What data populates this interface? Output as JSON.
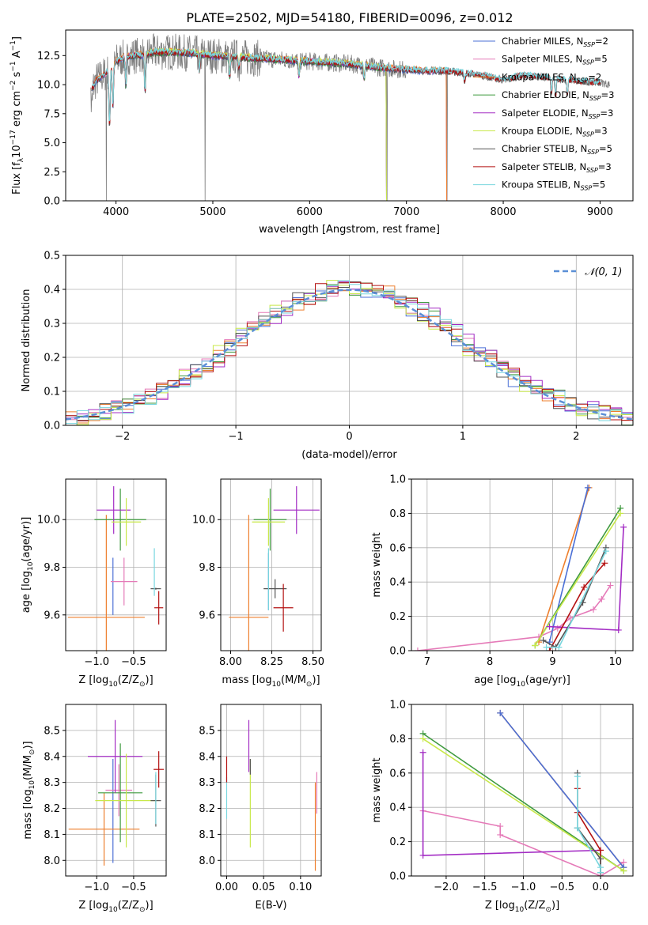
{
  "figure_title": "PLATE=2502, MJD=54180, FIBERID=0096, z=0.012",
  "colors": {
    "Chabrier MILES": "#4a6fd6",
    "Salpeter MILES": "#e57ab8",
    "Kroupa MILES": "#ee7f2d",
    "Chabrier ELODIE": "#3f9a3f",
    "Salpeter ELODIE": "#a32cc4",
    "Kroupa ELODIE": "#c8e84a",
    "Chabrier STELIB": "#555555",
    "Salpeter STELIB": "#b31010",
    "Kroupa STELIB": "#78d6de",
    "gauss": "#5b8fd6"
  },
  "chart_data": [
    {
      "id": "spectrum",
      "type": "line",
      "title": "PLATE=2502, MJD=54180, FIBERID=0096, z=0.012",
      "xlabel": "wavelength [Angstrom, rest frame]",
      "ylabel": "Flux [f",
      "ylabel_parts": [
        "Flux [f",
        "λ",
        "10",
        "−17",
        " erg cm",
        "−2",
        " s",
        "−1",
        " A",
        "−1",
        "]"
      ],
      "xlim": [
        3480,
        9340
      ],
      "ylim": [
        0,
        14.7
      ],
      "xticks": [
        "4000",
        "5000",
        "6000",
        "7000",
        "8000",
        "9000"
      ],
      "xtick_values": [
        4000,
        5000,
        6000,
        7000,
        8000,
        9000
      ],
      "yticks": [
        "0.0",
        "2.5",
        "5.0",
        "7.5",
        "10.0",
        "12.5"
      ],
      "ytick_values": [
        0,
        2.5,
        5.0,
        7.5,
        10.0,
        12.5
      ],
      "grid": false,
      "legend_position": "top-right",
      "series": [
        {
          "name": "Chabrier MILES",
          "name_base": "Chabrier MILES, N",
          "name_sub": "SSP",
          "name_tail": "=2"
        },
        {
          "name": "Salpeter MILES",
          "name_base": "Salpeter MILES, N",
          "name_sub": "SSP",
          "name_tail": "=5"
        },
        {
          "name": "Kroupa MILES",
          "name_base": "Kroupa MILES, N",
          "name_sub": "SSP",
          "name_tail": "=2"
        },
        {
          "name": "Chabrier ELODIE",
          "name_base": "Chabrier ELODIE, N",
          "name_sub": "SSP",
          "name_tail": "=3"
        },
        {
          "name": "Salpeter ELODIE",
          "name_base": "Salpeter ELODIE, N",
          "name_sub": "SSP",
          "name_tail": "=3"
        },
        {
          "name": "Kroupa ELODIE",
          "name_base": "Kroupa ELODIE, N",
          "name_sub": "SSP",
          "name_tail": "=3"
        },
        {
          "name": "Chabrier STELIB",
          "name_base": "Chabrier STELIB, N",
          "name_sub": "SSP",
          "name_tail": "=5"
        },
        {
          "name": "Salpeter STELIB",
          "name_base": "Salpeter STELIB, N",
          "name_sub": "SSP",
          "name_tail": "=3"
        },
        {
          "name": "Kroupa STELIB",
          "name_base": "Kroupa STELIB, N",
          "name_sub": "SSP",
          "name_tail": "=5"
        }
      ],
      "continuum": {
        "x": [
          3750,
          3800,
          3900,
          4000,
          4100,
          4200,
          4300,
          4400,
          4600,
          4800,
          5000,
          5200,
          5400,
          5600,
          5800,
          6000,
          6200,
          6400,
          6600,
          6800,
          7000,
          7200,
          7400,
          7600,
          7800,
          8000,
          8200,
          8400,
          8600,
          8800,
          9000,
          9100
        ],
        "y": [
          9.6,
          10.4,
          11.0,
          12.0,
          12.4,
          12.5,
          12.6,
          12.8,
          12.8,
          12.7,
          12.5,
          12.4,
          12.3,
          12.2,
          12.1,
          12.0,
          11.9,
          11.8,
          11.6,
          11.4,
          11.3,
          11.2,
          11.2,
          11.0,
          10.8,
          10.4,
          10.8,
          10.7,
          10.5,
          10.3,
          10.2,
          10.0
        ]
      },
      "features": [
        {
          "x": 3933,
          "depth": 0.45
        },
        {
          "x": 3968,
          "depth": 0.3
        },
        {
          "x": 4102,
          "depth": 0.2
        },
        {
          "x": 4300,
          "depth": 0.25
        },
        {
          "x": 4861,
          "depth": 0.12
        },
        {
          "x": 5175,
          "depth": 0.15
        },
        {
          "x": 5270,
          "depth": 0.08
        },
        {
          "x": 5890,
          "depth": 0.12
        },
        {
          "x": 6563,
          "depth": 0.1
        },
        {
          "x": 7600,
          "depth": 0.06
        },
        {
          "x": 8498,
          "depth": 0.12
        },
        {
          "x": 8542,
          "depth": 0.15
        },
        {
          "x": 8662,
          "depth": 0.13
        }
      ],
      "drops": [
        {
          "x": 3900,
          "y": 0.0
        },
        {
          "x": 4920,
          "y": 0.0
        },
        {
          "x": 6800,
          "y": 0.0
        },
        {
          "x": 7420,
          "y": 0.0
        }
      ]
    },
    {
      "id": "residuals",
      "type": "histogram",
      "xlabel": "(data-model)/error",
      "ylabel": "Normed distribution",
      "xlim": [
        -2.5,
        2.5
      ],
      "ylim": [
        0,
        0.5
      ],
      "xticks": [
        "−2",
        "−1",
        "0",
        "1",
        "2"
      ],
      "xtick_values": [
        -2,
        -1,
        0,
        1,
        2
      ],
      "yticks": [
        "0.0",
        "0.1",
        "0.2",
        "0.3",
        "0.4",
        "0.5"
      ],
      "ytick_values": [
        0,
        0.1,
        0.2,
        0.3,
        0.4,
        0.5
      ],
      "grid": true,
      "bin_width": 0.1,
      "legend_position": "top-right",
      "legend": [
        "𝒩(0, 1)"
      ],
      "gaussian": {
        "mean": 0,
        "sigma": 1
      }
    },
    {
      "id": "age-vs-Z",
      "type": "scatter",
      "xlabel": "Z [log",
      "xlabel_parts": [
        "Z [log",
        "10",
        "(Z/Z",
        "⊙",
        ")]"
      ],
      "ylabel_parts": [
        "age  [log",
        "10",
        "(age/yr)]"
      ],
      "xlim": [
        -1.42,
        -0.06
      ],
      "ylim": [
        9.45,
        10.17
      ],
      "xticks": [
        "−1.0",
        "−0.5"
      ],
      "xtick_values": [
        -1.0,
        -0.5
      ],
      "yticks": [
        "9.6",
        "9.8",
        "10.0"
      ],
      "ytick_values": [
        9.6,
        9.8,
        10.0
      ],
      "grid": true,
      "points": [
        {
          "model": "Chabrier MILES",
          "x": -0.78,
          "y": 9.72,
          "xerr": 0.0,
          "yerr": 0.12
        },
        {
          "model": "Salpeter MILES",
          "x": -0.63,
          "y": 9.74,
          "xerr": 0.18,
          "yerr": 0.1
        },
        {
          "model": "Kroupa MILES",
          "x": -0.87,
          "y": 9.59,
          "xerr": 0.52,
          "yerr": 0.43
        },
        {
          "model": "Chabrier ELODIE",
          "x": -0.68,
          "y": 10.0,
          "xerr": 0.35,
          "yerr": 0.13
        },
        {
          "model": "Salpeter ELODIE",
          "x": -0.77,
          "y": 10.04,
          "xerr": 0.23,
          "yerr": 0.1
        },
        {
          "model": "Kroupa ELODIE",
          "x": -0.6,
          "y": 9.99,
          "xerr": 0.2,
          "yerr": 0.1
        },
        {
          "model": "Chabrier STELIB",
          "x": -0.2,
          "y": 9.71,
          "xerr": 0.07,
          "yerr": 0.0
        },
        {
          "model": "Salpeter STELIB",
          "x": -0.16,
          "y": 9.63,
          "xerr": 0.06,
          "yerr": 0.07
        },
        {
          "model": "Kroupa STELIB",
          "x": -0.22,
          "y": 9.78,
          "xerr": 0.0,
          "yerr": 0.1
        }
      ]
    },
    {
      "id": "age-vs-mass",
      "type": "scatter",
      "xlabel_parts": [
        "mass [log",
        "10",
        "(M/M",
        "⊙",
        ")]"
      ],
      "ylabel_parts": [],
      "xlim": [
        7.94,
        8.55
      ],
      "ylim": [
        9.45,
        10.17
      ],
      "xticks": [
        "8.00",
        "8.25",
        "8.50"
      ],
      "xtick_values": [
        8.0,
        8.25,
        8.5
      ],
      "yticks": [
        "9.6",
        "9.8",
        "10.0"
      ],
      "ytick_values": [
        9.6,
        9.8,
        10.0
      ],
      "grid": true,
      "points": [
        {
          "model": "Chabrier MILES",
          "x": 8.23,
          "y": 9.74,
          "xerr": 0.0,
          "yerr": 0.12
        },
        {
          "model": "Kroupa MILES",
          "x": 8.11,
          "y": 9.59,
          "xerr": 0.12,
          "yerr": 0.43
        },
        {
          "model": "Chabrier ELODIE",
          "x": 8.24,
          "y": 10.0,
          "xerr": 0.1,
          "yerr": 0.13
        },
        {
          "model": "Salpeter ELODIE",
          "x": 8.4,
          "y": 10.04,
          "xerr": 0.14,
          "yerr": 0.1
        },
        {
          "model": "Kroupa ELODIE",
          "x": 8.23,
          "y": 9.99,
          "xerr": 0.1,
          "yerr": 0.1
        },
        {
          "model": "Chabrier STELIB",
          "x": 8.27,
          "y": 9.71,
          "xerr": 0.07,
          "yerr": 0.04
        },
        {
          "model": "Salpeter STELIB",
          "x": 8.32,
          "y": 9.63,
          "xerr": 0.06,
          "yerr": 0.1
        },
        {
          "model": "Kroupa STELIB",
          "x": 8.23,
          "y": 9.75,
          "xerr": 0.0,
          "yerr": 0.13
        }
      ]
    },
    {
      "id": "massweight-vs-age",
      "type": "line",
      "xlabel_parts": [
        "age  [log",
        "10",
        "(age/yr)]"
      ],
      "ylabel": "mass weight",
      "xlim": [
        6.75,
        10.28
      ],
      "ylim": [
        0,
        1.0
      ],
      "xticks": [
        "7",
        "8",
        "9",
        "10"
      ],
      "xtick_values": [
        7,
        8,
        9,
        10
      ],
      "yticks": [
        "0.0",
        "0.2",
        "0.4",
        "0.6",
        "0.8",
        "1.0"
      ],
      "ytick_values": [
        0,
        0.2,
        0.4,
        0.6,
        0.8,
        1.0
      ],
      "grid": true,
      "series": [
        {
          "model": "Salpeter MILES",
          "x": [
            6.85,
            8.78,
            9.08,
            9.28,
            9.65,
            9.78,
            9.92
          ],
          "y": [
            0.0,
            0.08,
            0.13,
            0.19,
            0.24,
            0.3,
            0.38
          ]
        },
        {
          "model": "Kroupa MILES",
          "x": [
            8.78,
            9.58
          ],
          "y": [
            0.05,
            0.95
          ]
        },
        {
          "model": "Chabrier MILES",
          "x": [
            8.95,
            9.56
          ],
          "y": [
            0.05,
            0.95
          ]
        },
        {
          "model": "Chabrier ELODIE",
          "x": [
            8.72,
            10.08
          ],
          "y": [
            0.03,
            0.83
          ]
        },
        {
          "model": "Kroupa ELODIE",
          "x": [
            8.72,
            10.08
          ],
          "y": [
            0.03,
            0.8
          ]
        },
        {
          "model": "Salpeter ELODIE",
          "x": [
            8.95,
            10.05,
            10.13
          ],
          "y": [
            0.14,
            0.12,
            0.72
          ]
        },
        {
          "model": "Salpeter STELIB",
          "x": [
            8.95,
            9.5,
            9.83
          ],
          "y": [
            0.0,
            0.37,
            0.51
          ]
        },
        {
          "model": "Chabrier STELIB",
          "x": [
            8.85,
            9.05,
            9.48,
            9.85
          ],
          "y": [
            0.06,
            0.02,
            0.28,
            0.6
          ]
        },
        {
          "model": "Kroupa STELIB",
          "x": [
            8.9,
            9.1,
            9.85
          ],
          "y": [
            0.02,
            0.02,
            0.58
          ]
        }
      ]
    },
    {
      "id": "mass-vs-Z",
      "type": "scatter",
      "xlabel_parts": [
        "Z [log",
        "10",
        "(Z/Z",
        "⊙",
        ")]"
      ],
      "ylabel_parts": [
        "mass [log",
        "10",
        "(M/M",
        "⊙",
        ")]"
      ],
      "xlim": [
        -1.42,
        -0.06
      ],
      "ylim": [
        7.94,
        8.6
      ],
      "xticks": [
        "−1.0",
        "−0.5"
      ],
      "xtick_values": [
        -1.0,
        -0.5
      ],
      "yticks": [
        "8.0",
        "8.1",
        "8.2",
        "8.3",
        "8.4",
        "8.5"
      ],
      "ytick_values": [
        8.0,
        8.1,
        8.2,
        8.3,
        8.4,
        8.5
      ],
      "grid": true,
      "points": [
        {
          "model": "Chabrier MILES",
          "x": -0.78,
          "y": 8.19,
          "xerr": 0.0,
          "yerr": 0.2
        },
        {
          "model": "Salpeter MILES",
          "x": -0.7,
          "y": 8.27,
          "xerr": 0.18,
          "yerr": 0.1
        },
        {
          "model": "Kroupa MILES",
          "x": -0.9,
          "y": 8.12,
          "xerr": 0.48,
          "yerr": 0.14
        },
        {
          "model": "Chabrier ELODIE",
          "x": -0.68,
          "y": 8.26,
          "xerr": 0.3,
          "yerr": 0.19
        },
        {
          "model": "Salpeter ELODIE",
          "x": -0.75,
          "y": 8.4,
          "xerr": 0.37,
          "yerr": 0.14
        },
        {
          "model": "Kroupa ELODIE",
          "x": -0.6,
          "y": 8.23,
          "xerr": 0.42,
          "yerr": 0.18
        },
        {
          "model": "Chabrier STELIB",
          "x": -0.2,
          "y": 8.23,
          "xerr": 0.07,
          "yerr": 0.1
        },
        {
          "model": "Salpeter STELIB",
          "x": -0.16,
          "y": 8.35,
          "xerr": 0.07,
          "yerr": 0.07
        },
        {
          "model": "Kroupa STELIB",
          "x": -0.2,
          "y": 8.24,
          "xerr": 0.0,
          "yerr": 0.1
        }
      ]
    },
    {
      "id": "mass-vs-ebv",
      "type": "scatter",
      "xlabel": "E(B-V)",
      "ylabel_parts": [],
      "xlim": [
        -0.008,
        0.128
      ],
      "ylim": [
        7.94,
        8.6
      ],
      "xticks": [
        "0.00",
        "0.05",
        "0.10"
      ],
      "xtick_values": [
        0.0,
        0.05,
        0.1
      ],
      "yticks": [
        "8.0",
        "8.1",
        "8.2",
        "8.3",
        "8.4",
        "8.5"
      ],
      "ytick_values": [
        8.0,
        8.1,
        8.2,
        8.3,
        8.4,
        8.5
      ],
      "grid": true,
      "points": [
        {
          "model": "Kroupa STELIB",
          "x": 0.0,
          "y": 8.24,
          "xerr": 0,
          "yerr": 0.08
        },
        {
          "model": "Salpeter STELIB",
          "x": 0.0,
          "y": 8.35,
          "xerr": 0,
          "yerr": 0.05
        },
        {
          "model": "Salpeter ELODIE",
          "x": 0.03,
          "y": 8.44,
          "xerr": 0,
          "yerr": 0.1
        },
        {
          "model": "Kroupa ELODIE",
          "x": 0.032,
          "y": 8.22,
          "xerr": 0,
          "yerr": 0.17
        },
        {
          "model": "Chabrier STELIB",
          "x": 0.032,
          "y": 8.36,
          "xerr": 0,
          "yerr": 0.03
        },
        {
          "model": "Kroupa MILES",
          "x": 0.12,
          "y": 8.13,
          "xerr": 0,
          "yerr": 0.17
        },
        {
          "model": "Salpeter MILES",
          "x": 0.122,
          "y": 8.26,
          "xerr": 0,
          "yerr": 0.08
        }
      ]
    },
    {
      "id": "massweight-vs-Z",
      "type": "line",
      "xlabel_parts": [
        "Z [log",
        "10",
        "(Z/Z",
        "⊙",
        ")]"
      ],
      "ylabel": "mass weight",
      "xlim": [
        -2.45,
        0.42
      ],
      "ylim": [
        0,
        1.0
      ],
      "xticks": [
        "−2.0",
        "−1.5",
        "−1.0",
        "−0.5",
        "0.0"
      ],
      "xtick_values": [
        -2.0,
        -1.5,
        -1.0,
        -0.5,
        0.0
      ],
      "yticks": [
        "0.0",
        "0.2",
        "0.4",
        "0.6",
        "0.8",
        "1.0"
      ],
      "ytick_values": [
        0,
        0.2,
        0.4,
        0.6,
        0.8,
        1.0
      ],
      "grid": true,
      "series": [
        {
          "model": "Salpeter MILES",
          "x": [
            -2.3,
            -1.3,
            -1.3,
            0.0,
            0.3
          ],
          "y": [
            0.38,
            0.29,
            0.24,
            0.0,
            0.08
          ]
        },
        {
          "model": "Kroupa MILES",
          "x": [
            -1.3,
            0.3
          ],
          "y": [
            0.95,
            0.05
          ]
        },
        {
          "model": "Chabrier MILES",
          "x": [
            -1.3,
            0.3
          ],
          "y": [
            0.95,
            0.05
          ]
        },
        {
          "model": "Chabrier ELODIE",
          "x": [
            -2.3,
            0.3
          ],
          "y": [
            0.83,
            0.03
          ]
        },
        {
          "model": "Kroupa ELODIE",
          "x": [
            -2.3,
            0.3
          ],
          "y": [
            0.8,
            0.03
          ]
        },
        {
          "model": "Salpeter ELODIE",
          "x": [
            -2.3,
            -2.3,
            0.0
          ],
          "y": [
            0.72,
            0.12,
            0.15
          ]
        },
        {
          "model": "Salpeter STELIB",
          "x": [
            -0.3,
            -0.3,
            0.0,
            0.0
          ],
          "y": [
            0.51,
            0.37,
            0.15,
            0.0
          ]
        },
        {
          "model": "Chabrier STELIB",
          "x": [
            -0.3,
            -0.3,
            0.0,
            0.0
          ],
          "y": [
            0.6,
            0.28,
            0.1,
            0.02
          ]
        },
        {
          "model": "Kroupa STELIB",
          "x": [
            -0.3,
            -0.3,
            0.0,
            0.0
          ],
          "y": [
            0.58,
            0.28,
            0.05,
            0.02
          ]
        }
      ]
    }
  ]
}
